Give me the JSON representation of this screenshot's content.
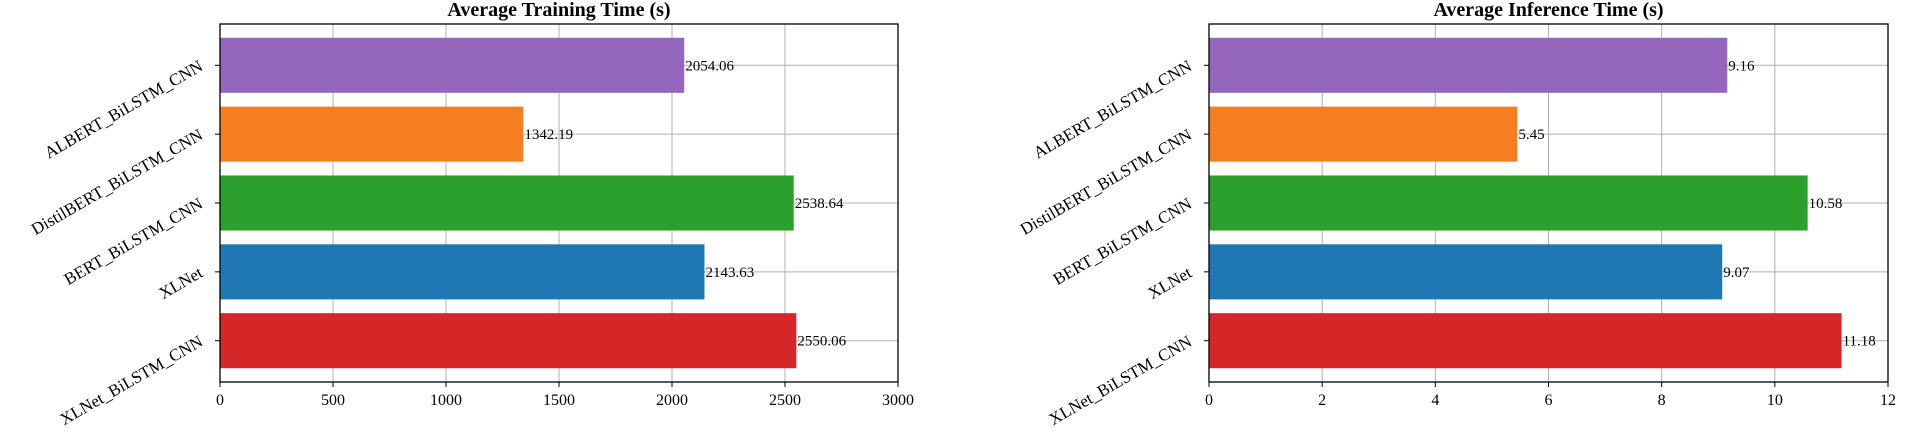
{
  "chart_data": [
    {
      "type": "bar",
      "orientation": "horizontal",
      "title": "Average Training Time (s)",
      "categories": [
        "ALBERT_BiLSTM_CNN",
        "DistilBERT_BiLSTM_CNN",
        "BERT_BiLSTM_CNN",
        "XLNet",
        "XLNet_BiLSTM_CNN"
      ],
      "values": [
        2054.06,
        1342.19,
        2538.64,
        2143.63,
        2550.06
      ],
      "data_labels": [
        "2054.06",
        "1342.19",
        "2538.64",
        "2143.63",
        "2550.06"
      ],
      "colors": [
        "#9467bd",
        "#f57f20",
        "#2ca02c",
        "#1f77b4",
        "#d62728"
      ],
      "xlim": [
        0,
        3000
      ],
      "xticks": [
        0,
        500,
        1000,
        1500,
        2000,
        2500,
        3000
      ],
      "xtick_labels": [
        "0",
        "500",
        "1000",
        "1500",
        "2000",
        "2500",
        "3000"
      ],
      "grid": true,
      "xlabel": "",
      "ylabel": ""
    },
    {
      "type": "bar",
      "orientation": "horizontal",
      "title": "Average Inference Time  (s)",
      "categories": [
        "ALBERT_BiLSTM_CNN",
        "DistilBERT_BiLSTM_CNN",
        "BERT_BiLSTM_CNN",
        "XLNet",
        "XLNet_BiLSTM_CNN"
      ],
      "values": [
        9.16,
        5.45,
        10.58,
        9.07,
        11.18
      ],
      "data_labels": [
        "9.16",
        "5.45",
        "10.58",
        "9.07",
        "11.18"
      ],
      "colors": [
        "#9467bd",
        "#f57f20",
        "#2ca02c",
        "#1f77b4",
        "#d62728"
      ],
      "xlim": [
        0,
        12
      ],
      "xticks": [
        0,
        2,
        4,
        6,
        8,
        10,
        12
      ],
      "xtick_labels": [
        "0",
        "2",
        "4",
        "6",
        "8",
        "10",
        "12"
      ],
      "grid": true,
      "xlabel": "",
      "ylabel": ""
    }
  ]
}
